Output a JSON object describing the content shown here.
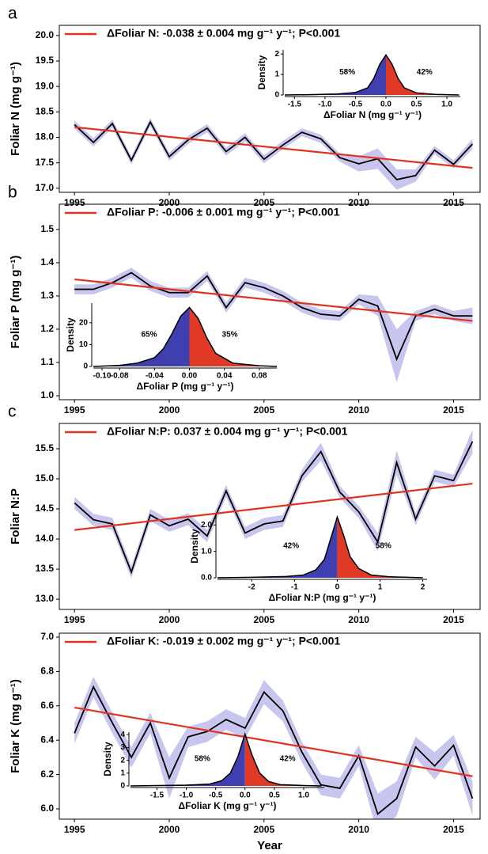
{
  "chart_data": [
    {
      "type": "line",
      "panel_label": "a",
      "y_label": "Foliar N (mg g⁻¹)",
      "x": [
        1995,
        1996,
        1997,
        1998,
        1999,
        2000,
        2001,
        2002,
        2003,
        2004,
        2005,
        2006,
        2007,
        2008,
        2009,
        2010,
        2011,
        2012,
        2013,
        2014,
        2015,
        2016
      ],
      "xlim": [
        1994.2,
        2016.4
      ],
      "xticks": [
        1995,
        2000,
        2005,
        2010,
        2015
      ],
      "ylim": [
        16.92,
        20.2
      ],
      "yticks": [
        {
          "value": 17,
          "label": "17.0"
        },
        17.5,
        {
          "value": 18,
          "label": "18.0"
        },
        18.5,
        {
          "value": 19,
          "label": "19.0"
        },
        19.5,
        {
          "value": 20,
          "label": "20.0"
        }
      ],
      "series": [
        {
          "color": "#000000",
          "values": [
            18.25,
            17.9,
            18.27,
            17.55,
            18.3,
            17.62,
            17.95,
            18.18,
            17.72,
            18.0,
            17.57,
            17.85,
            18.1,
            17.97,
            17.6,
            17.48,
            17.58,
            17.17,
            17.25,
            17.75,
            17.47,
            17.87
          ]
        }
      ],
      "band": {
        "color": "#c8c6ee",
        "lower": [
          18.17,
          17.82,
          18.19,
          17.47,
          18.22,
          17.54,
          17.87,
          18.1,
          17.64,
          17.92,
          17.49,
          17.77,
          18.02,
          17.89,
          17.52,
          17.33,
          17.38,
          16.97,
          17.13,
          17.67,
          17.39,
          17.77
        ],
        "upper": [
          18.33,
          17.98,
          18.35,
          17.63,
          18.38,
          17.7,
          18.03,
          18.26,
          17.8,
          18.08,
          17.65,
          17.93,
          18.18,
          18.05,
          17.68,
          17.63,
          17.78,
          17.37,
          17.37,
          17.83,
          17.55,
          17.97
        ]
      },
      "trend": {
        "name": "ΔFoliar N: -0.038 ± 0.004 mg g⁻¹ y⁻¹; P<0.001",
        "color": "#e0331f",
        "x": [
          1995,
          2016
        ],
        "values": [
          18.2,
          17.4
        ]
      },
      "inset": {
        "type": "area",
        "x_label": "ΔFoliar N (mg g⁻¹ y⁻¹)",
        "y_label": "Density",
        "colors": [
          "#3f3fb0",
          "#e03a26"
        ],
        "xlim": [
          -1.66,
          1.22
        ],
        "xticks": [
          -1.5,
          {
            "value": -1,
            "label": "-1.0"
          },
          -0.5,
          {
            "value": 0,
            "label": "0.0"
          },
          0.5,
          {
            "value": 1,
            "label": "1.0"
          }
        ],
        "ylim": [
          0,
          2.2
        ],
        "yticks": [
          0,
          1,
          2
        ],
        "x": [
          -1.66,
          -1.2,
          -0.8,
          -0.5,
          -0.3,
          -0.2,
          -0.1,
          0,
          0.1,
          0.2,
          0.3,
          0.5,
          0.8,
          1.2
        ],
        "values": [
          0,
          0.02,
          0.05,
          0.12,
          0.35,
          0.8,
          1.5,
          1.95,
          1.5,
          0.8,
          0.35,
          0.1,
          0.03,
          0
        ],
        "shares": {
          "values": [
            58,
            42
          ],
          "value_labels": [
            "58%",
            "42%"
          ]
        }
      }
    },
    {
      "type": "line",
      "panel_label": "b",
      "y_label": "Foliar P (mg g⁻¹)",
      "x": [
        1995,
        1996,
        1997,
        1998,
        1999,
        2000,
        2001,
        2002,
        2003,
        2004,
        2005,
        2006,
        2007,
        2008,
        2009,
        2010,
        2011,
        2012,
        2013,
        2014,
        2015,
        2016
      ],
      "xlim": [
        1994.2,
        2016.4
      ],
      "xticks": [
        1995,
        2000,
        2005,
        2010,
        2015
      ],
      "ylim": [
        0.988,
        1.576
      ],
      "yticks": [
        {
          "value": 1,
          "label": "1.0"
        },
        1.1,
        1.2,
        1.3,
        1.4,
        1.5
      ],
      "series": [
        {
          "color": "#000000",
          "values": [
            1.32,
            1.32,
            1.34,
            1.37,
            1.33,
            1.31,
            1.31,
            1.36,
            1.265,
            1.34,
            1.325,
            1.3,
            1.265,
            1.245,
            1.24,
            1.29,
            1.27,
            1.11,
            1.24,
            1.26,
            1.24,
            1.24
          ]
        }
      ],
      "band": {
        "color": "#c8c6ee",
        "lower": [
          1.305,
          1.305,
          1.325,
          1.355,
          1.315,
          1.295,
          1.295,
          1.345,
          1.25,
          1.325,
          1.31,
          1.285,
          1.25,
          1.23,
          1.225,
          1.275,
          1.24,
          1.04,
          1.225,
          1.245,
          1.225,
          1.215
        ],
        "upper": [
          1.335,
          1.335,
          1.355,
          1.385,
          1.345,
          1.325,
          1.325,
          1.375,
          1.28,
          1.355,
          1.34,
          1.315,
          1.28,
          1.26,
          1.255,
          1.305,
          1.3,
          1.2,
          1.255,
          1.275,
          1.255,
          1.265
        ]
      },
      "trend": {
        "name": "ΔFoliar P: -0.006 ± 0.001 mg g⁻¹ y⁻¹; P<0.001",
        "color": "#e0331f",
        "x": [
          1995,
          2016
        ],
        "values": [
          1.35,
          1.225
        ]
      },
      "inset": {
        "type": "area",
        "x_label": "ΔFoliar P (mg g⁻¹ y⁻¹)",
        "y_label": "Density",
        "colors": [
          "#3f3fb0",
          "#e03a26"
        ],
        "xlim": [
          -0.11,
          0.1
        ],
        "xticks": [
          {
            "value": -0.1,
            "label": "-0.10"
          },
          -0.08,
          -0.04,
          {
            "value": 0,
            "label": "0.00"
          },
          0.04,
          0.08
        ],
        "ylim": [
          0,
          29
        ],
        "yticks": [
          0,
          10,
          20
        ],
        "x": [
          -0.11,
          -0.08,
          -0.06,
          -0.04,
          -0.03,
          -0.02,
          -0.01,
          0,
          0.01,
          0.02,
          0.03,
          0.05,
          0.08,
          0.1
        ],
        "values": [
          0,
          0.5,
          1.5,
          4,
          8,
          15,
          23,
          27,
          22,
          13,
          6,
          1.5,
          0.3,
          0
        ],
        "shares": {
          "values": [
            65,
            35
          ],
          "value_labels": [
            "65%",
            "35%"
          ]
        }
      }
    },
    {
      "type": "line",
      "panel_label": "c",
      "y_label": "Foliar N:P",
      "x": [
        1995,
        1996,
        1997,
        1998,
        1999,
        2000,
        2001,
        2002,
        2003,
        2004,
        2005,
        2006,
        2007,
        2008,
        2009,
        2010,
        2011,
        2012,
        2013,
        2014,
        2015,
        2016
      ],
      "xlim": [
        1994.2,
        2016.4
      ],
      "xticks": [
        1995,
        2000,
        2005,
        2010,
        2015
      ],
      "ylim": [
        12.83,
        15.92
      ],
      "yticks": [
        {
          "value": 13,
          "label": "13.0"
        },
        13.5,
        {
          "value": 14,
          "label": "14.0"
        },
        14.5,
        {
          "value": 15,
          "label": "15.0"
        },
        15.5
      ],
      "series": [
        {
          "color": "#000000",
          "values": [
            14.6,
            14.32,
            14.25,
            13.45,
            14.4,
            14.22,
            14.33,
            14.05,
            14.8,
            14.1,
            14.25,
            14.3,
            15.05,
            15.45,
            14.78,
            14.45,
            13.95,
            15.27,
            14.33,
            15.05,
            14.97,
            15.62
          ]
        }
      ],
      "band": {
        "color": "#c8c6ee",
        "lower": [
          14.5,
          14.22,
          14.15,
          13.35,
          14.3,
          14.12,
          14.23,
          13.95,
          14.7,
          14.0,
          14.15,
          14.2,
          14.95,
          15.3,
          14.68,
          14.35,
          13.8,
          15.07,
          14.23,
          14.95,
          14.87,
          15.42
        ],
        "upper": [
          14.7,
          14.42,
          14.35,
          13.55,
          14.5,
          14.32,
          14.43,
          14.15,
          14.9,
          14.2,
          14.35,
          14.4,
          15.15,
          15.6,
          14.88,
          14.55,
          14.1,
          15.47,
          14.43,
          15.15,
          15.07,
          15.82
        ]
      },
      "trend": {
        "name": "ΔFoliar N:P: 0.037 ± 0.004 mg g⁻¹ y⁻¹; P<0.001",
        "color": "#e0331f",
        "x": [
          1995,
          2016
        ],
        "values": [
          14.15,
          14.92
        ]
      },
      "inset": {
        "type": "area",
        "x_label": "ΔFoliar N:P (mg g⁻¹ y⁻¹)",
        "y_label": "Density",
        "colors": [
          "#3f3fb0",
          "#e03a26"
        ],
        "xlim": [
          -2.8,
          2.1
        ],
        "xticks": [
          -2,
          -1,
          0,
          1,
          2
        ],
        "ylim": [
          0,
          2.4
        ],
        "yticks": [
          {
            "value": 0,
            "label": "0.0"
          },
          {
            "value": 1,
            "label": "1.0"
          },
          {
            "value": 2,
            "label": "2.0"
          }
        ],
        "x": [
          -2.8,
          -2,
          -1.2,
          -0.8,
          -0.5,
          -0.3,
          -0.15,
          0,
          0.15,
          0.3,
          0.5,
          0.8,
          1.2,
          2
        ],
        "values": [
          0,
          0.02,
          0.05,
          0.1,
          0.3,
          0.7,
          1.5,
          2.3,
          1.6,
          0.8,
          0.35,
          0.1,
          0.04,
          0
        ],
        "shares": {
          "values": [
            42,
            58
          ],
          "value_labels": [
            "42%",
            "58%"
          ]
        }
      }
    },
    {
      "type": "line",
      "y_label": "Foliar K (mg g⁻¹)",
      "x_label": "Year",
      "x": [
        1995,
        1996,
        1997,
        1998,
        1999,
        2000,
        2001,
        2002,
        2003,
        2004,
        2005,
        2006,
        2007,
        2008,
        2009,
        2010,
        2011,
        2012,
        2013,
        2014,
        2015,
        2016
      ],
      "xlim": [
        1994.2,
        2016.4
      ],
      "xticks": [
        1995,
        2000,
        2005,
        2010,
        2015
      ],
      "ylim": [
        5.94,
        7.023
      ],
      "yticks": [
        {
          "value": 6,
          "label": "6.0"
        },
        6.2,
        6.4,
        6.6,
        6.8,
        {
          "value": 7,
          "label": "7.0"
        }
      ],
      "series": [
        {
          "color": "#000000",
          "values": [
            6.44,
            6.71,
            6.5,
            6.3,
            6.5,
            6.18,
            6.42,
            6.45,
            6.52,
            6.47,
            6.68,
            6.57,
            6.33,
            6.14,
            6.12,
            6.31,
            5.97,
            6.06,
            6.36,
            6.25,
            6.37,
            6.06
          ]
        }
      ],
      "band": {
        "color": "#c8c6ee",
        "lower": [
          6.38,
          6.65,
          6.44,
          6.24,
          6.44,
          6.06,
          6.36,
          6.39,
          6.46,
          6.41,
          6.61,
          6.51,
          6.27,
          6.08,
          6.06,
          6.25,
          5.85,
          5.96,
          6.3,
          6.17,
          6.31,
          5.96
        ],
        "upper": [
          6.5,
          6.77,
          6.56,
          6.36,
          6.56,
          6.3,
          6.48,
          6.51,
          6.58,
          6.53,
          6.75,
          6.63,
          6.39,
          6.2,
          6.18,
          6.37,
          6.09,
          6.16,
          6.42,
          6.33,
          6.43,
          6.16
        ]
      },
      "trend": {
        "name": "ΔFoliar K: -0.019 ± 0.002 mg g⁻¹ y⁻¹; P<0.001",
        "color": "#e0331f",
        "x": [
          1995,
          2016
        ],
        "values": [
          6.59,
          6.19
        ]
      },
      "inset": {
        "type": "area",
        "x_label": "ΔFoliar K (mg g⁻¹ y⁻¹)",
        "y_label": "Density",
        "colors": [
          "#3f3fb0",
          "#e03a26"
        ],
        "xlim": [
          -1.95,
          1.35
        ],
        "xticks": [
          -1.5,
          {
            "value": -1,
            "label": "-1.0"
          },
          -0.5,
          {
            "value": 0,
            "label": "0.0"
          },
          0.5,
          {
            "value": 1,
            "label": "1.0"
          }
        ],
        "ylim": [
          0,
          4.2
        ],
        "yticks": [
          0,
          1,
          2,
          3,
          4
        ],
        "x": [
          -1.95,
          -1.5,
          -1,
          -0.6,
          -0.4,
          -0.25,
          -0.12,
          0,
          0.12,
          0.25,
          0.4,
          0.6,
          1,
          1.3
        ],
        "values": [
          0,
          0.03,
          0.06,
          0.15,
          0.4,
          1,
          2.3,
          4.05,
          2.4,
          1,
          0.35,
          0.1,
          0.03,
          0
        ],
        "shares": {
          "values": [
            58,
            42
          ],
          "value_labels": [
            "58%",
            "42%"
          ]
        }
      }
    }
  ]
}
